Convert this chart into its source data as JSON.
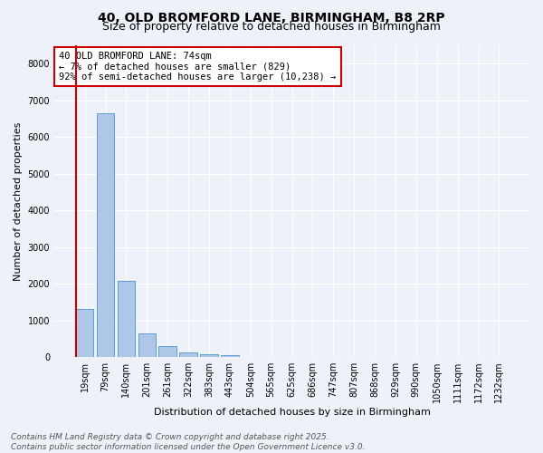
{
  "title_line1": "40, OLD BROMFORD LANE, BIRMINGHAM, B8 2RP",
  "title_line2": "Size of property relative to detached houses in Birmingham",
  "xlabel": "Distribution of detached houses by size in Birmingham",
  "ylabel": "Number of detached properties",
  "categories": [
    "19sqm",
    "79sqm",
    "140sqm",
    "201sqm",
    "261sqm",
    "322sqm",
    "383sqm",
    "443sqm",
    "504sqm",
    "565sqm",
    "625sqm",
    "686sqm",
    "747sqm",
    "807sqm",
    "868sqm",
    "929sqm",
    "990sqm",
    "1050sqm",
    "1111sqm",
    "1172sqm",
    "1232sqm"
  ],
  "values": [
    1300,
    6650,
    2080,
    650,
    300,
    120,
    70,
    50,
    0,
    0,
    0,
    0,
    0,
    0,
    0,
    0,
    0,
    0,
    0,
    0,
    0
  ],
  "bar_color": "#aec6e8",
  "bar_edge_color": "#5a9fd4",
  "highlight_color": "#cc0000",
  "annotation_text": "40 OLD BROMFORD LANE: 74sqm\n← 7% of detached houses are smaller (829)\n92% of semi-detached houses are larger (10,238) →",
  "annotation_box_color": "#ffffff",
  "annotation_box_edge_color": "#cc0000",
  "ylim": [
    0,
    8500
  ],
  "yticks": [
    0,
    1000,
    2000,
    3000,
    4000,
    5000,
    6000,
    7000,
    8000
  ],
  "footer_line1": "Contains HM Land Registry data © Crown copyright and database right 2025.",
  "footer_line2": "Contains public sector information licensed under the Open Government Licence v3.0.",
  "background_color": "#eef2f8",
  "plot_bg_color": "#eef2f8",
  "grid_color": "#ffffff",
  "title_fontsize": 10,
  "subtitle_fontsize": 9,
  "label_fontsize": 8,
  "tick_fontsize": 7,
  "annotation_fontsize": 7.5,
  "footer_fontsize": 6.5
}
